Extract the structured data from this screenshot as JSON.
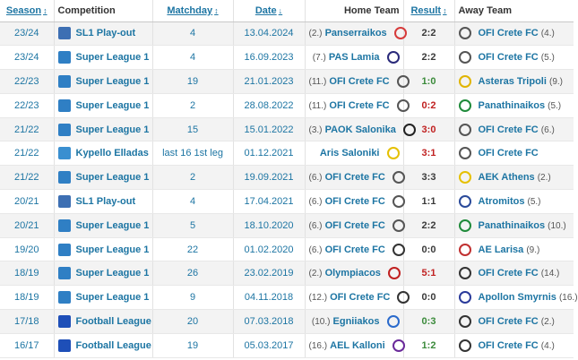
{
  "header": {
    "season": "Season",
    "competition": "Competition",
    "matchday": "Matchday",
    "date": "Date",
    "home": "Home Team",
    "result": "Result",
    "away": "Away Team",
    "sort_up_down": "↕",
    "sort_down": "↓"
  },
  "rows": [
    {
      "season": "23/24",
      "comp": "SL1 Play-out",
      "comp_icon": "sl1-playout-logo",
      "md": "4",
      "date": "13.04.2024",
      "home_pos": "(2.)",
      "home": "Panserraikos",
      "home_icon": "panserraikos-crest",
      "home_color": "#d63a3a",
      "result": "2:2",
      "result_color": "#3a3a3a",
      "away": "OFI Crete FC",
      "away_pos": "(4.)",
      "away_icon": "ofi-crest",
      "away_color": "#555555"
    },
    {
      "season": "23/24",
      "comp": "Super League 1",
      "comp_icon": "super-league-1-logo",
      "md": "4",
      "date": "16.09.2023",
      "home_pos": "(7.)",
      "home": "PAS Lamia",
      "home_icon": "pas-lamia-crest",
      "home_color": "#2a2a7a",
      "result": "2:2",
      "result_color": "#3a3a3a",
      "away": "OFI Crete FC",
      "away_pos": "(5.)",
      "away_icon": "ofi-crest",
      "away_color": "#555555"
    },
    {
      "season": "22/23",
      "comp": "Super League 1",
      "comp_icon": "super-league-1-logo",
      "md": "19",
      "date": "21.01.2023",
      "home_pos": "(11.)",
      "home": "OFI Crete FC",
      "home_icon": "ofi-crest",
      "home_color": "#555555",
      "result": "1:0",
      "result_color": "#3a8a3a",
      "away": "Asteras Tripoli",
      "away_pos": "(9.)",
      "away_icon": "asteras-crest",
      "away_color": "#e0b400"
    },
    {
      "season": "22/23",
      "comp": "Super League 1",
      "comp_icon": "super-league-1-logo",
      "md": "2",
      "date": "28.08.2022",
      "home_pos": "(11.)",
      "home": "OFI Crete FC",
      "home_icon": "ofi-crest",
      "home_color": "#555555",
      "result": "0:2",
      "result_color": "#c02020",
      "away": "Panathinaikos",
      "away_pos": "(5.)",
      "away_icon": "panathinaikos-crest",
      "away_color": "#1f8a3a"
    },
    {
      "season": "21/22",
      "comp": "Super League 1",
      "comp_icon": "super-league-1-logo",
      "md": "15",
      "date": "15.01.2022",
      "home_pos": "(3.)",
      "home": "PAOK Salonika",
      "home_icon": "paok-crest",
      "home_color": "#222222",
      "result": "3:0",
      "result_color": "#c02020",
      "away": "OFI Crete FC",
      "away_pos": "(6.)",
      "away_icon": "ofi-crest",
      "away_color": "#555555"
    },
    {
      "season": "21/22",
      "comp": "Kypello Elladas",
      "comp_icon": "kypello-logo",
      "md": "last 16 1st leg",
      "date": "01.12.2021",
      "home_pos": "",
      "home": "Aris Saloniki",
      "home_icon": "aris-crest",
      "home_color": "#e5c000",
      "result": "3:1",
      "result_color": "#c02020",
      "away": "OFI Crete FC",
      "away_pos": "",
      "away_icon": "ofi-crest",
      "away_color": "#555555"
    },
    {
      "season": "21/22",
      "comp": "Super League 1",
      "comp_icon": "super-league-1-logo",
      "md": "2",
      "date": "19.09.2021",
      "home_pos": "(6.)",
      "home": "OFI Crete FC",
      "home_icon": "ofi-crest",
      "home_color": "#555555",
      "result": "3:3",
      "result_color": "#3a3a3a",
      "away": "AEK Athens",
      "away_pos": "(2.)",
      "away_icon": "aek-crest",
      "away_color": "#e5c000"
    },
    {
      "season": "20/21",
      "comp": "SL1 Play-out",
      "comp_icon": "sl1-playout-logo",
      "md": "4",
      "date": "17.04.2021",
      "home_pos": "(6.)",
      "home": "OFI Crete FC",
      "home_icon": "ofi-crest",
      "home_color": "#555555",
      "result": "1:1",
      "result_color": "#3a3a3a",
      "away": "Atromitos",
      "away_pos": "(5.)",
      "away_icon": "atromitos-crest",
      "away_color": "#2a4a9a"
    },
    {
      "season": "20/21",
      "comp": "Super League 1",
      "comp_icon": "super-league-1-logo",
      "md": "5",
      "date": "18.10.2020",
      "home_pos": "(6.)",
      "home": "OFI Crete FC",
      "home_icon": "ofi-crest",
      "home_color": "#555555",
      "result": "2:2",
      "result_color": "#3a3a3a",
      "away": "Panathinaikos",
      "away_pos": "(10.)",
      "away_icon": "panathinaikos-crest",
      "away_color": "#1f8a3a"
    },
    {
      "season": "19/20",
      "comp": "Super League 1",
      "comp_icon": "super-league-1-logo",
      "md": "22",
      "date": "01.02.2020",
      "home_pos": "(6.)",
      "home": "OFI Crete FC",
      "home_icon": "ofi-crest",
      "home_color": "#333333",
      "result": "0:0",
      "result_color": "#3a3a3a",
      "away": "AE Larisa",
      "away_pos": "(9.)",
      "away_icon": "larisa-crest",
      "away_color": "#c03030"
    },
    {
      "season": "18/19",
      "comp": "Super League 1",
      "comp_icon": "super-league-1-logo",
      "md": "26",
      "date": "23.02.2019",
      "home_pos": "(2.)",
      "home": "Olympiacos",
      "home_icon": "olympiacos-crest",
      "home_color": "#c02020",
      "result": "5:1",
      "result_color": "#c02020",
      "away": "OFI Crete FC",
      "away_pos": "(14.)",
      "away_icon": "ofi-crest",
      "away_color": "#333333"
    },
    {
      "season": "18/19",
      "comp": "Super League 1",
      "comp_icon": "super-league-1-logo",
      "md": "9",
      "date": "04.11.2018",
      "home_pos": "(12.)",
      "home": "OFI Crete FC",
      "home_icon": "ofi-crest",
      "home_color": "#333333",
      "result": "0:0",
      "result_color": "#3a3a3a",
      "away": "Apollon Smyrnis",
      "away_pos": "(16.)",
      "away_icon": "apollon-crest",
      "away_color": "#2a3a9a"
    },
    {
      "season": "17/18",
      "comp": "Football League",
      "comp_icon": "football-league-logo",
      "md": "20",
      "date": "07.03.2018",
      "home_pos": "(10.)",
      "home": "Egniiakos",
      "home_icon": "egniiakos-crest",
      "home_color": "#2a6acc",
      "result": "0:3",
      "result_color": "#3a8a3a",
      "away": "OFI Crete FC",
      "away_pos": "(2.)",
      "away_icon": "ofi-crest",
      "away_color": "#333333"
    },
    {
      "season": "16/17",
      "comp": "Football League",
      "comp_icon": "football-league-logo",
      "md": "19",
      "date": "05.03.2017",
      "home_pos": "(16.)",
      "home": "AEL Kalloni",
      "home_icon": "kalloni-crest",
      "home_color": "#6a2a9a",
      "result": "1:2",
      "result_color": "#3a8a3a",
      "away": "OFI Crete FC",
      "away_pos": "(4.)",
      "away_icon": "ofi-crest",
      "away_color": "#333333"
    }
  ],
  "colors": {
    "link": "#1d75a3",
    "super_league_logo": "#2f7fc4",
    "playout_logo": "#3d6fb3",
    "kypello_logo": "#3a8fd0",
    "football_league_logo": "#1e4fb8"
  }
}
